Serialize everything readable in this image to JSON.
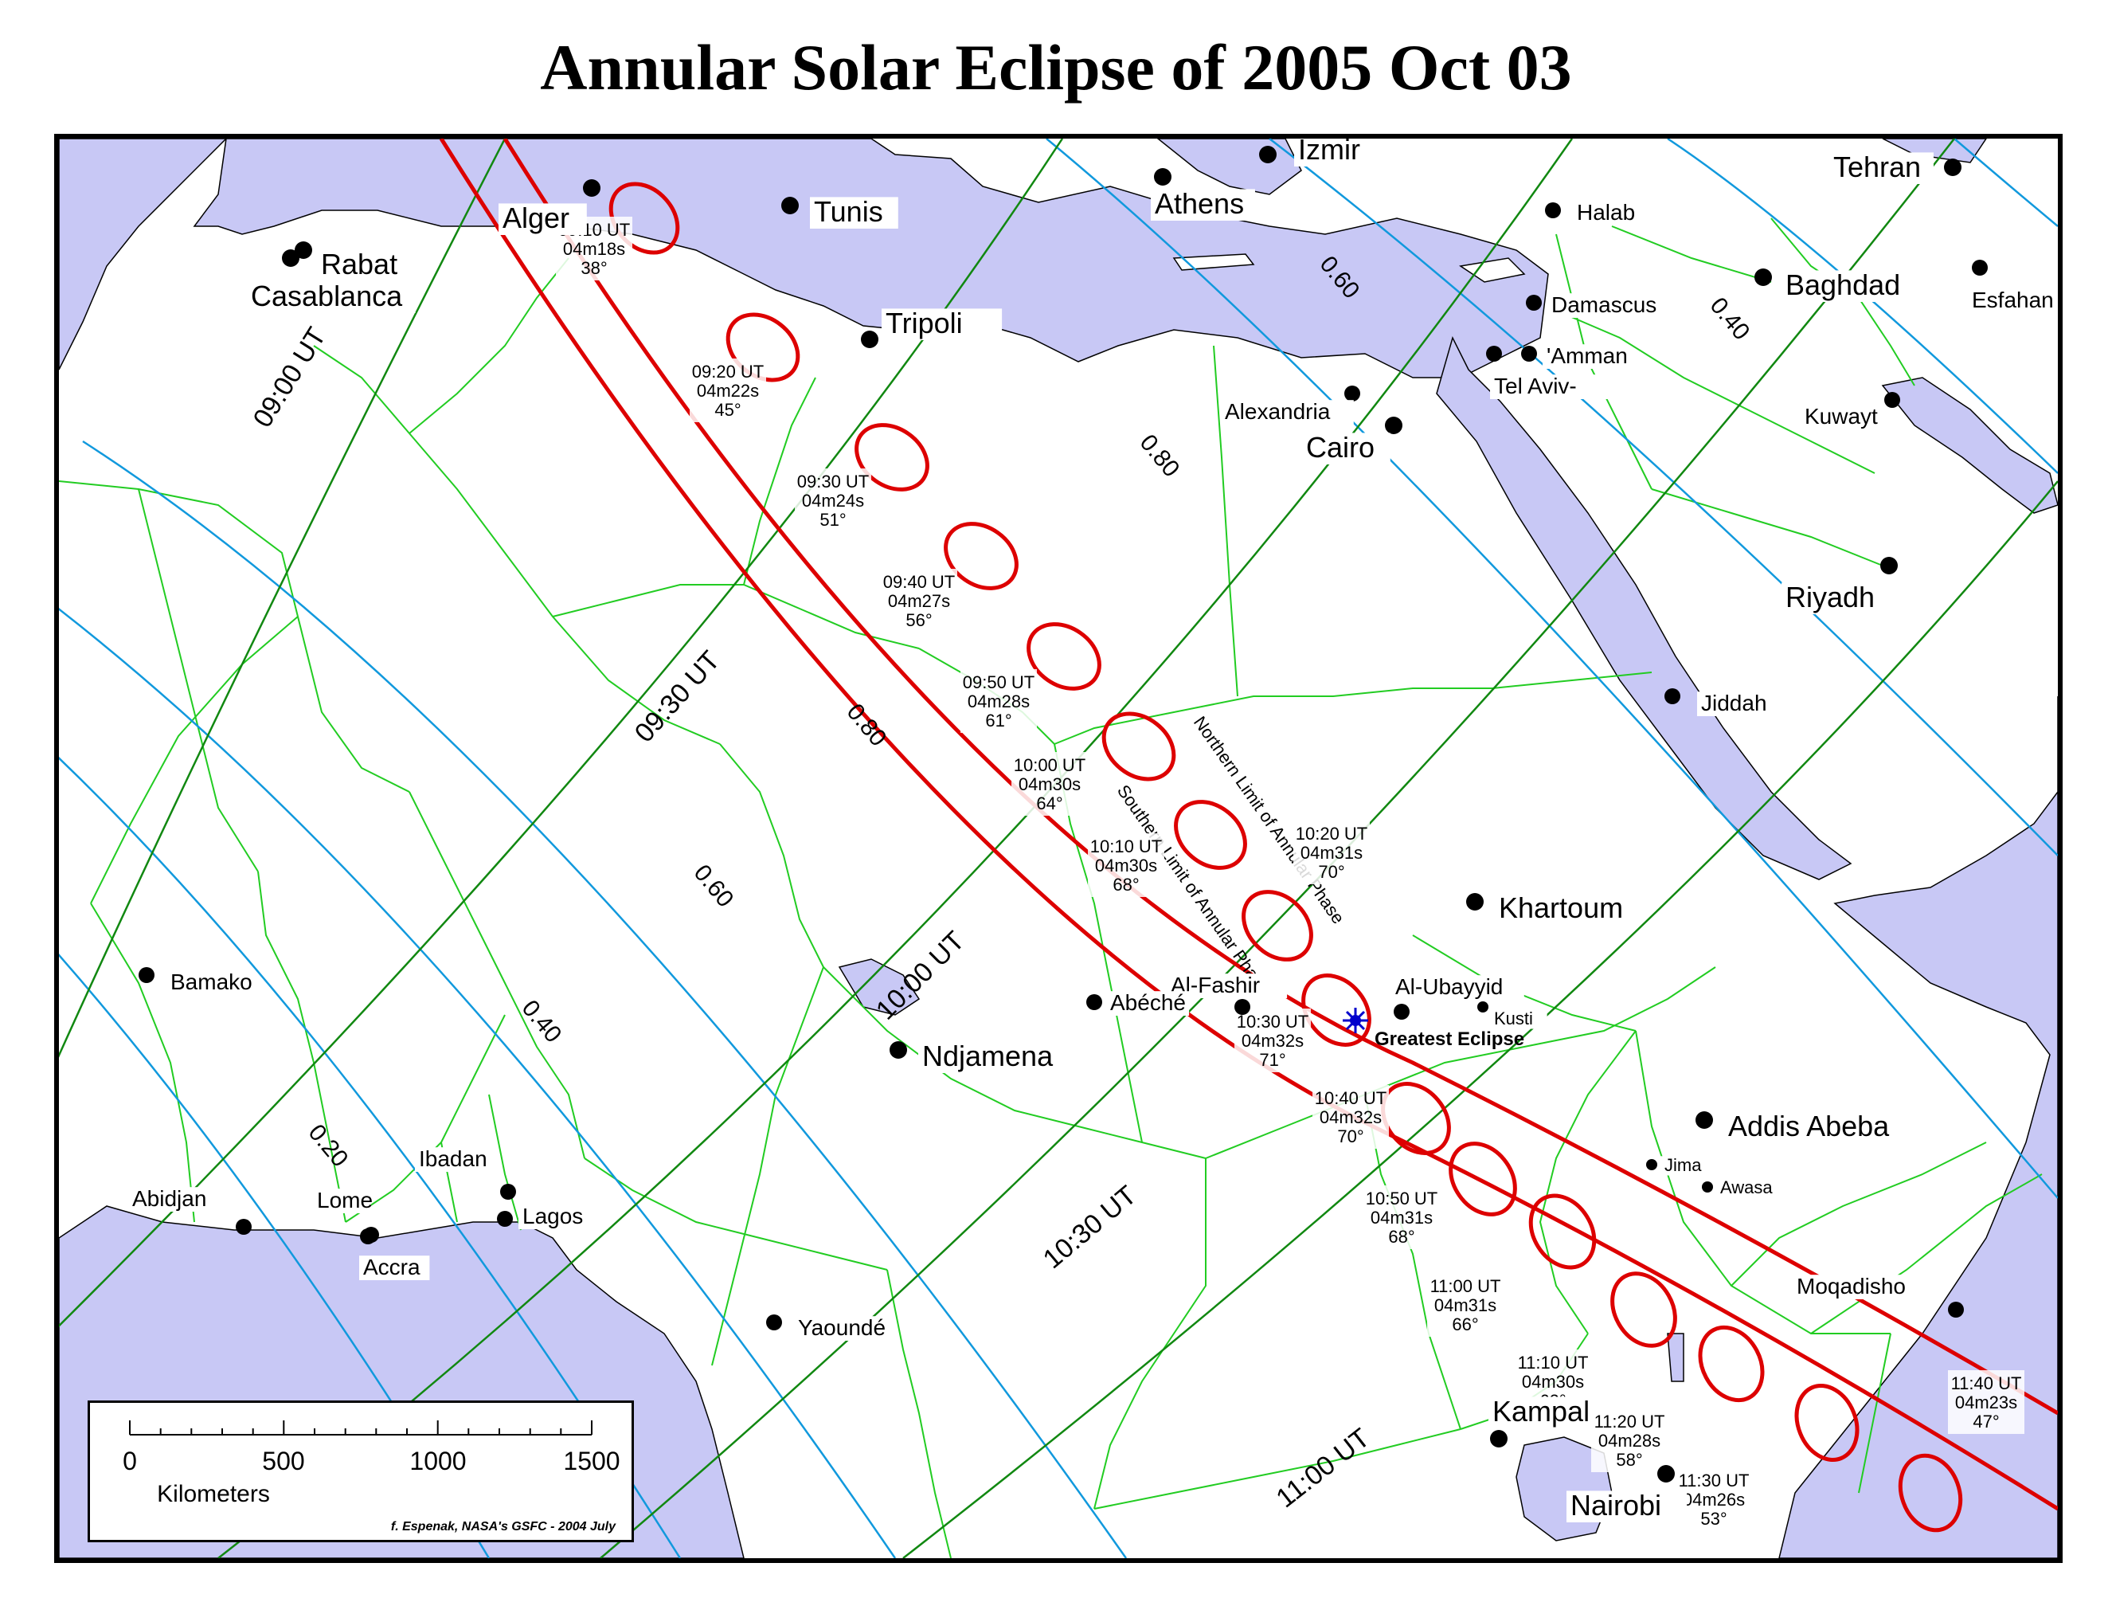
{
  "title": "Annular Solar Eclipse of  2005 Oct 03",
  "colors": {
    "water": "#c8c8f5",
    "land": "#ffffff",
    "borders": "#22cc22",
    "central_path": "#dd0000",
    "time_lines": "#118811",
    "magnitude_lines": "#1199dd",
    "greatest_eclipse_marker": "#0000cc"
  },
  "cities": [
    {
      "name": "Rabat",
      "size": "large"
    },
    {
      "name": "Casablanca",
      "size": "large"
    },
    {
      "name": "Alger",
      "size": "large"
    },
    {
      "name": "Tunis",
      "size": "large"
    },
    {
      "name": "Tripoli",
      "size": "large"
    },
    {
      "name": "Athens",
      "size": "large"
    },
    {
      "name": "Izmir",
      "size": "large"
    },
    {
      "name": "Halab",
      "size": "small"
    },
    {
      "name": "Damascus",
      "size": "small"
    },
    {
      "name": "'Amman",
      "size": "small"
    },
    {
      "name": "Tel Aviv-",
      "size": "small"
    },
    {
      "name": "Alexandria",
      "size": "small"
    },
    {
      "name": "Cairo",
      "size": "large"
    },
    {
      "name": "Tehran",
      "size": "large"
    },
    {
      "name": "Baghdad",
      "size": "large"
    },
    {
      "name": "Esfahan",
      "size": "small"
    },
    {
      "name": "Kuwayt",
      "size": "small"
    },
    {
      "name": "Riyadh",
      "size": "large"
    },
    {
      "name": "Jiddah",
      "size": "small"
    },
    {
      "name": "Khartoum",
      "size": "large"
    },
    {
      "name": "Al-Ubayyid",
      "size": "small"
    },
    {
      "name": "Kusti",
      "size": "tiny"
    },
    {
      "name": "Al-Fashir",
      "size": "small"
    },
    {
      "name": "Abéché",
      "size": "small"
    },
    {
      "name": "Ndjamena",
      "size": "large"
    },
    {
      "name": "Bamako",
      "size": "small"
    },
    {
      "name": "Abidjan",
      "size": "small"
    },
    {
      "name": "Lome",
      "size": "small"
    },
    {
      "name": "Accra",
      "size": "small"
    },
    {
      "name": "Ibadan",
      "size": "small"
    },
    {
      "name": "Lagos",
      "size": "small"
    },
    {
      "name": "Yaoundé",
      "size": "small"
    },
    {
      "name": "Addis Abeba",
      "size": "large"
    },
    {
      "name": "Jima",
      "size": "tiny"
    },
    {
      "name": "Awasa",
      "size": "tiny"
    },
    {
      "name": "Moqadisho",
      "size": "small"
    },
    {
      "name": "Kampal",
      "size": "large"
    },
    {
      "name": "Nairobi",
      "size": "large"
    }
  ],
  "eclipse_positions": [
    {
      "time": "09:10 UT",
      "duration": "04m18s",
      "altitude": "38°"
    },
    {
      "time": "09:20 UT",
      "duration": "04m22s",
      "altitude": "45°"
    },
    {
      "time": "09:30 UT",
      "duration": "04m24s",
      "altitude": "51°"
    },
    {
      "time": "09:40 UT",
      "duration": "04m27s",
      "altitude": "56°"
    },
    {
      "time": "09:50 UT",
      "duration": "04m28s",
      "altitude": "61°"
    },
    {
      "time": "10:00 UT",
      "duration": "04m30s",
      "altitude": "64°"
    },
    {
      "time": "10:10 UT",
      "duration": "04m30s",
      "altitude": "68°"
    },
    {
      "time": "10:20 UT",
      "duration": "04m31s",
      "altitude": "70°"
    },
    {
      "time": "10:30 UT",
      "duration": "04m32s",
      "altitude": "71°"
    },
    {
      "time": "10:40 UT",
      "duration": "04m32s",
      "altitude": "70°"
    },
    {
      "time": "10:50 UT",
      "duration": "04m31s",
      "altitude": "68°"
    },
    {
      "time": "11:00 UT",
      "duration": "04m31s",
      "altitude": "66°"
    },
    {
      "time": "11:10 UT",
      "duration": "04m30s",
      "altitude": "62°"
    },
    {
      "time": "11:20 UT",
      "duration": "04m28s",
      "altitude": "58°"
    },
    {
      "time": "11:30 UT",
      "duration": "04m26s",
      "altitude": "53°"
    },
    {
      "time": "11:40 UT",
      "duration": "04m23s",
      "altitude": "47°"
    }
  ],
  "time_lines": [
    "09:00 UT",
    "09:30 UT",
    "10:00 UT",
    "10:30 UT",
    "11:00 UT"
  ],
  "magnitude_labels": [
    "0.20",
    "0.40",
    "0.60",
    "0.80",
    "0.80",
    "0.60",
    "0.40"
  ],
  "path_limits": {
    "north": "Northern Limit of Annular Phase",
    "south": "Southern Limit of Annular Phase"
  },
  "greatest_eclipse": "Greatest Eclipse",
  "scale": {
    "ticks": [
      "0",
      "500",
      "1000",
      "1500"
    ],
    "unit": "Kilometers",
    "credit": "f. Espenak, NASA's GSFC - 2004 July"
  }
}
